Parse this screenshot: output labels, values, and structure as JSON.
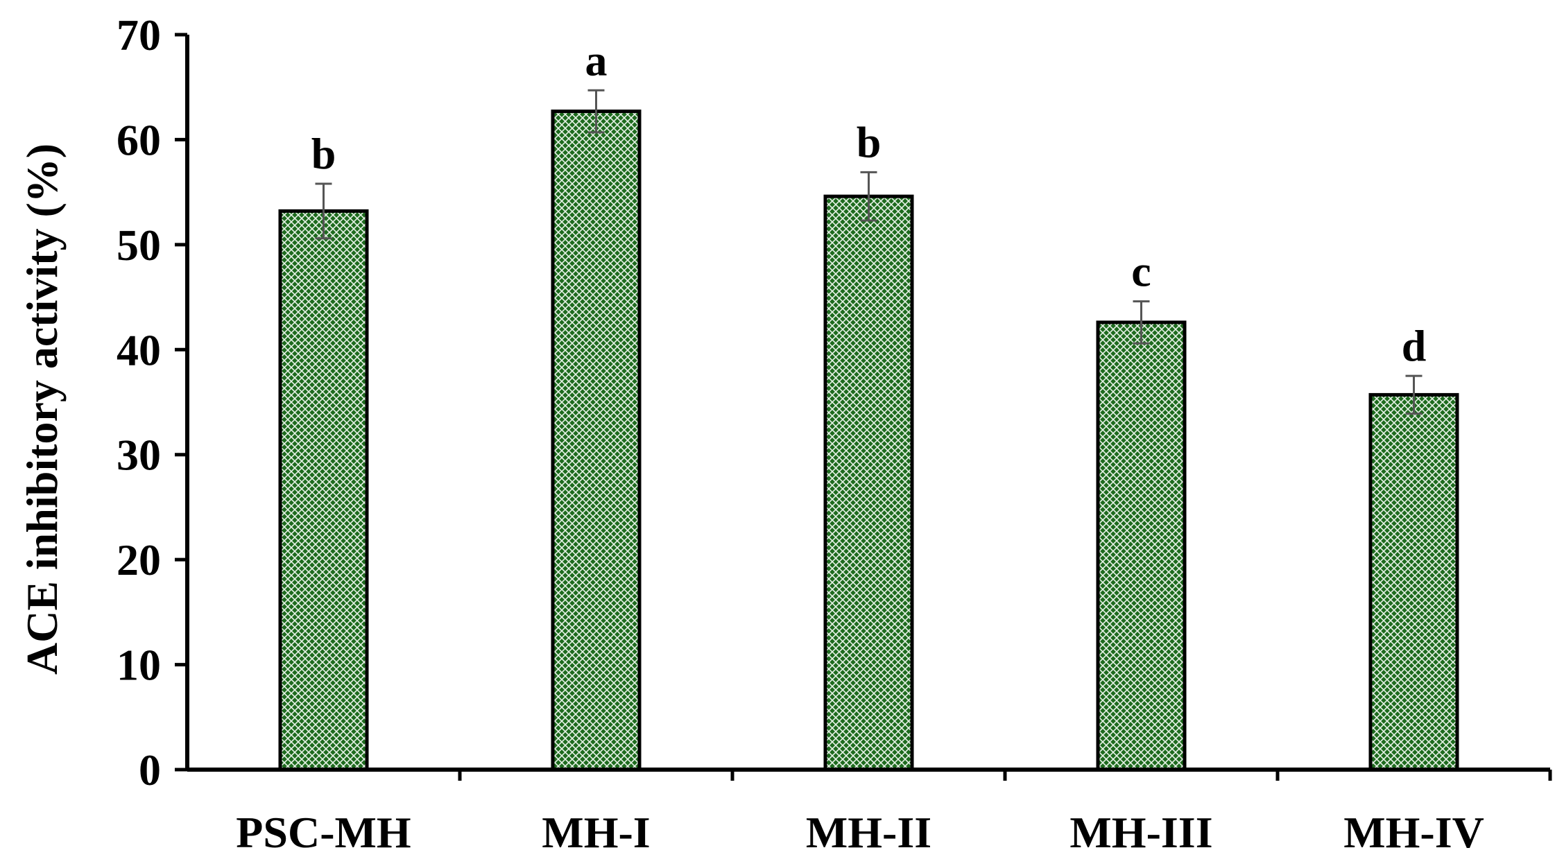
{
  "chart_data": {
    "type": "bar",
    "title": "",
    "xlabel": "",
    "ylabel": "ACE inhibitory activity (%)",
    "ylim": [
      0,
      70
    ],
    "yticks": [
      "0",
      "10",
      "20",
      "30",
      "40",
      "50",
      "60",
      "70"
    ],
    "categories": [
      "PSC-MH",
      "MH-I",
      "MH-II",
      "MH-III",
      "MH-IV"
    ],
    "values": [
      53.2,
      62.7,
      54.6,
      42.6,
      35.7
    ],
    "errors": [
      2.6,
      2.0,
      2.3,
      2.0,
      1.8
    ],
    "significance": [
      "b",
      "a",
      "b",
      "c",
      "d"
    ],
    "grid": false,
    "legend": "none",
    "bar_color": "#1e6b1e",
    "bar_pattern": "crosshatch",
    "error_bar_color": "#555555"
  }
}
